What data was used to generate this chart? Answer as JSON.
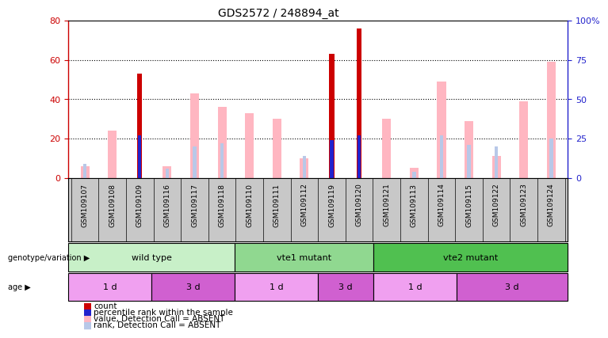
{
  "title": "GDS2572 / 248894_at",
  "samples": [
    "GSM109107",
    "GSM109108",
    "GSM109109",
    "GSM109116",
    "GSM109117",
    "GSM109118",
    "GSM109110",
    "GSM109111",
    "GSM109112",
    "GSM109119",
    "GSM109120",
    "GSM109121",
    "GSM109113",
    "GSM109114",
    "GSM109115",
    "GSM109122",
    "GSM109123",
    "GSM109124"
  ],
  "count": [
    0,
    0,
    53,
    0,
    0,
    0,
    0,
    0,
    0,
    63,
    76,
    0,
    0,
    0,
    0,
    0,
    0,
    0
  ],
  "percentile_rank": [
    0,
    0,
    27,
    0,
    0,
    0,
    0,
    0,
    0,
    24,
    27,
    0,
    0,
    0,
    0,
    0,
    0,
    0
  ],
  "value_absent": [
    6,
    24,
    0,
    6,
    43,
    36,
    33,
    30,
    10,
    0,
    0,
    30,
    5,
    49,
    29,
    11,
    39,
    59
  ],
  "rank_absent": [
    9,
    0,
    0,
    6,
    20,
    22,
    0,
    0,
    14,
    0,
    0,
    0,
    4,
    27,
    21,
    20,
    0,
    25
  ],
  "ylim_left": [
    0,
    80
  ],
  "ylim_right": [
    0,
    100
  ],
  "yticks_left": [
    0,
    20,
    40,
    60,
    80
  ],
  "ytick_labels_left": [
    "0",
    "20",
    "40",
    "60",
    "80"
  ],
  "yticks_right": [
    0,
    25,
    50,
    75,
    100
  ],
  "ytick_labels_right": [
    "0",
    "25",
    "50",
    "75",
    "100%"
  ],
  "genotype_groups": [
    {
      "label": "wild type",
      "start": 0,
      "end": 6,
      "color": "#c8f0c8"
    },
    {
      "label": "vte1 mutant",
      "start": 6,
      "end": 11,
      "color": "#90d890"
    },
    {
      "label": "vte2 mutant",
      "start": 11,
      "end": 18,
      "color": "#50c050"
    }
  ],
  "age_groups": [
    {
      "label": "1 d",
      "start": 0,
      "end": 3,
      "color": "#f0a0f0"
    },
    {
      "label": "3 d",
      "start": 3,
      "end": 6,
      "color": "#d060d0"
    },
    {
      "label": "1 d",
      "start": 6,
      "end": 9,
      "color": "#f0a0f0"
    },
    {
      "label": "3 d",
      "start": 9,
      "end": 11,
      "color": "#d060d0"
    },
    {
      "label": "1 d",
      "start": 11,
      "end": 14,
      "color": "#f0a0f0"
    },
    {
      "label": "3 d",
      "start": 14,
      "end": 18,
      "color": "#d060d0"
    }
  ],
  "count_color": "#cc0000",
  "percentile_color": "#2222cc",
  "value_absent_color": "#ffb6c1",
  "rank_absent_color": "#b8c8e8",
  "bg_color": "#ffffff",
  "axis_color_left": "#cc0000",
  "axis_color_right": "#2222cc",
  "sample_area_color": "#c8c8c8",
  "genotype_label": "genotype/variation",
  "age_label": "age"
}
